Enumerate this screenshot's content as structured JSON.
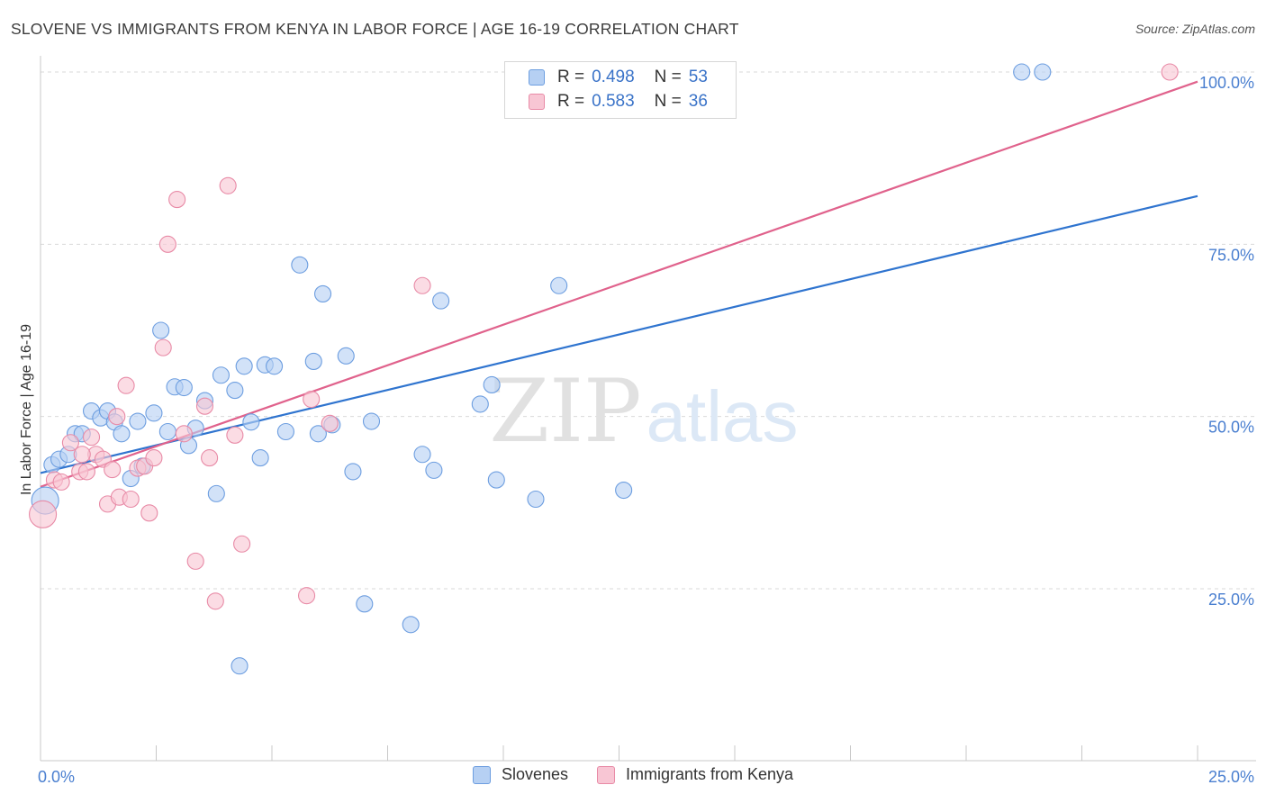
{
  "header": {
    "title": "SLOVENE VS IMMIGRANTS FROM KENYA IN LABOR FORCE | AGE 16-19 CORRELATION CHART",
    "source": "Source: ZipAtlas.com"
  },
  "legend": {
    "series1": {
      "r_label": "R =",
      "r_value": "0.498",
      "n_label": "N =",
      "n_value": "53"
    },
    "series2": {
      "r_label": "R =",
      "r_value": "0.583",
      "n_label": "N =",
      "n_value": "36"
    }
  },
  "bottom_legend": {
    "series1": "Slovenes",
    "series2": "Immigrants from Kenya"
  },
  "watermark": {
    "part1": "ZIP",
    "part2": "atlas"
  },
  "colors": {
    "blue_fill": "#b6d0f3",
    "blue_stroke": "#6d9ee0",
    "blue_line": "#2f74cf",
    "pink_fill": "#f8c6d4",
    "pink_stroke": "#e88aa6",
    "pink_line": "#e0628c",
    "axis_label": "#4a7fd0",
    "grid": "#d9d9d9"
  },
  "chart_data": {
    "type": "scatter",
    "title": "SLOVENE VS IMMIGRANTS FROM KENYA IN LABOR FORCE | AGE 16-19 CORRELATION CHART",
    "xlabel": "",
    "ylabel": "In Labor Force | Age 16-19",
    "xlim": [
      0,
      25
    ],
    "ylim": [
      0,
      105
    ],
    "x_tick_labels": [
      "0.0%",
      "25.0%"
    ],
    "y_ticks": [
      25,
      50,
      75,
      100
    ],
    "y_tick_labels": [
      "25.0%",
      "50.0%",
      "75.0%",
      "100.0%"
    ],
    "series": [
      {
        "name": "Slovenes",
        "r": 0.498,
        "n": 53,
        "trend": {
          "x": [
            0,
            25
          ],
          "y": [
            41.8,
            82.0
          ]
        },
        "points": [
          [
            0.1,
            37.8,
            15
          ],
          [
            0.25,
            43.0,
            9
          ],
          [
            0.4,
            43.8,
            9
          ],
          [
            0.6,
            44.5,
            9
          ],
          [
            0.75,
            47.5,
            9
          ],
          [
            0.9,
            47.5,
            9
          ],
          [
            1.1,
            50.8,
            9
          ],
          [
            1.3,
            49.8,
            9
          ],
          [
            1.45,
            50.8,
            9
          ],
          [
            1.6,
            49.2,
            9
          ],
          [
            1.75,
            47.5,
            9
          ],
          [
            1.95,
            41.0,
            9
          ],
          [
            2.1,
            49.3,
            9
          ],
          [
            2.2,
            42.8,
            9
          ],
          [
            2.45,
            50.5,
            9
          ],
          [
            2.6,
            62.5,
            9
          ],
          [
            2.75,
            47.8,
            9
          ],
          [
            2.9,
            54.3,
            9
          ],
          [
            3.1,
            54.2,
            9
          ],
          [
            3.2,
            45.8,
            9
          ],
          [
            3.35,
            48.3,
            9
          ],
          [
            3.55,
            52.3,
            9
          ],
          [
            3.8,
            38.8,
            9
          ],
          [
            3.9,
            56.0,
            9
          ],
          [
            4.2,
            53.8,
            9
          ],
          [
            4.3,
            13.8,
            9
          ],
          [
            4.4,
            57.3,
            9
          ],
          [
            4.55,
            49.2,
            9
          ],
          [
            4.75,
            44.0,
            9
          ],
          [
            4.85,
            57.5,
            9
          ],
          [
            5.05,
            57.3,
            9
          ],
          [
            5.3,
            47.8,
            9
          ],
          [
            5.6,
            72.0,
            9
          ],
          [
            5.9,
            58.0,
            9
          ],
          [
            6.0,
            47.5,
            9
          ],
          [
            6.1,
            67.8,
            9
          ],
          [
            6.3,
            48.8,
            9
          ],
          [
            6.6,
            58.8,
            9
          ],
          [
            6.75,
            42.0,
            9
          ],
          [
            7.0,
            22.8,
            9
          ],
          [
            7.15,
            49.3,
            9
          ],
          [
            8.0,
            19.8,
            9
          ],
          [
            8.25,
            44.5,
            9
          ],
          [
            8.5,
            42.2,
            9
          ],
          [
            8.65,
            66.8,
            9
          ],
          [
            9.5,
            51.8,
            9
          ],
          [
            9.75,
            54.6,
            9
          ],
          [
            9.85,
            40.8,
            9
          ],
          [
            10.7,
            38.0,
            9
          ],
          [
            11.2,
            69.0,
            9
          ],
          [
            12.6,
            39.3,
            9
          ],
          [
            21.2,
            100.0,
            9
          ],
          [
            21.65,
            100.0,
            9
          ]
        ]
      },
      {
        "name": "Immigrants from Kenya",
        "r": 0.583,
        "n": 36,
        "trend": {
          "x": [
            0,
            25
          ],
          "y": [
            39.8,
            98.6
          ]
        },
        "points": [
          [
            0.05,
            35.8,
            15
          ],
          [
            0.3,
            40.8,
            9
          ],
          [
            0.45,
            40.5,
            9
          ],
          [
            0.65,
            46.2,
            9
          ],
          [
            0.85,
            42.0,
            9
          ],
          [
            1.0,
            42.0,
            9
          ],
          [
            1.1,
            47.0,
            9
          ],
          [
            1.2,
            44.5,
            9
          ],
          [
            1.35,
            43.8,
            9
          ],
          [
            1.45,
            37.3,
            9
          ],
          [
            1.55,
            42.3,
            9
          ],
          [
            1.7,
            38.3,
            9
          ],
          [
            1.85,
            54.5,
            9
          ],
          [
            1.95,
            38.0,
            9
          ],
          [
            2.1,
            42.5,
            9
          ],
          [
            2.25,
            42.8,
            9
          ],
          [
            2.35,
            36.0,
            9
          ],
          [
            2.45,
            44.0,
            9
          ],
          [
            2.65,
            60.0,
            9
          ],
          [
            2.75,
            75.0,
            9
          ],
          [
            2.95,
            81.5,
            9
          ],
          [
            3.1,
            47.5,
            9
          ],
          [
            3.35,
            29.0,
            9
          ],
          [
            3.55,
            51.5,
            9
          ],
          [
            3.65,
            44.0,
            9
          ],
          [
            3.78,
            23.2,
            9
          ],
          [
            4.05,
            83.5,
            9
          ],
          [
            4.2,
            47.3,
            9
          ],
          [
            4.35,
            31.5,
            9
          ],
          [
            5.75,
            24.0,
            9
          ],
          [
            5.85,
            52.5,
            9
          ],
          [
            6.25,
            49.0,
            9
          ],
          [
            8.25,
            69.0,
            9
          ],
          [
            24.4,
            100.0,
            9
          ],
          [
            0.9,
            44.5,
            9
          ],
          [
            1.65,
            50.0,
            9
          ]
        ]
      }
    ]
  }
}
